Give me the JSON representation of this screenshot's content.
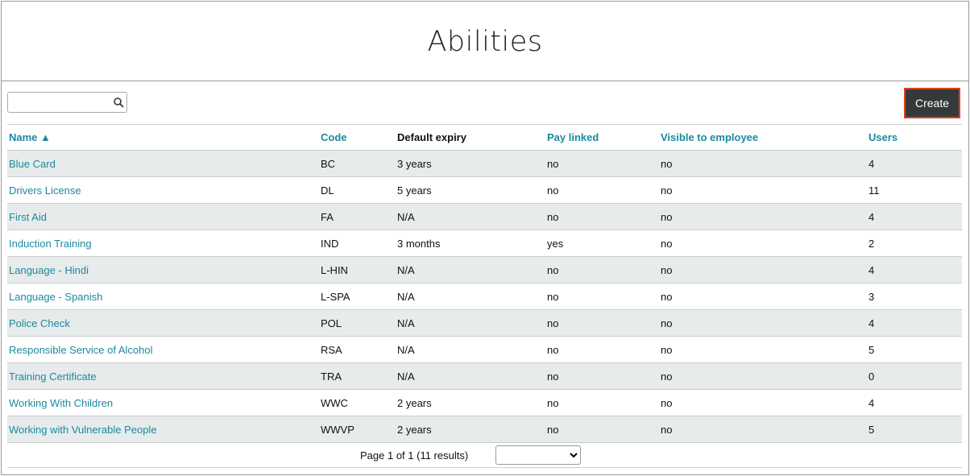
{
  "header": {
    "title": "Abilities"
  },
  "toolbar": {
    "create_button": "Create"
  },
  "table": {
    "columns": [
      "Name ▲",
      "Code",
      "Default expiry",
      "Pay linked",
      "Visible to employee",
      "Users"
    ],
    "rows": [
      [
        "Blue Card",
        "BC",
        "3 years",
        "no",
        "no",
        4
      ],
      [
        "Drivers License",
        "DL",
        "5 years",
        "no",
        "no",
        11
      ],
      [
        "First Aid",
        "FA",
        "N/A",
        "no",
        "no",
        4
      ],
      [
        "Induction Training",
        "IND",
        "3 months",
        "yes",
        "no",
        2
      ],
      [
        "Language - Hindi",
        "L-HIN",
        "N/A",
        "no",
        "no",
        4
      ],
      [
        "Language - Spanish",
        "L-SPA",
        "N/A",
        "no",
        "no",
        3
      ],
      [
        "Police Check",
        "POL",
        "N/A",
        "no",
        "no",
        4
      ],
      [
        "Responsible Service of Alcohol",
        "RSA",
        "N/A",
        "no",
        "no",
        5
      ],
      [
        "Training Certificate",
        "TRA",
        "N/A",
        "no",
        "no",
        0
      ],
      [
        "Working With Children",
        "WWC",
        "2 years",
        "no",
        "no",
        4
      ],
      [
        "Working with Vulnerable People",
        "WWVP",
        "2 years",
        "no",
        "no",
        5
      ]
    ]
  },
  "pagination": {
    "summary": "Page 1 of 1 (11 results)"
  }
}
